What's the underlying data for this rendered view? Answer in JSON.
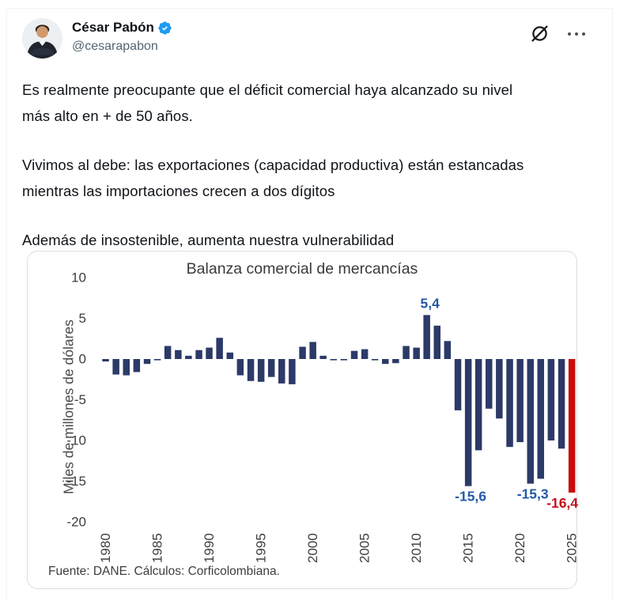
{
  "header": {
    "author_name": "César Pabón",
    "handle": "@cesarapabon",
    "verified": true,
    "icons": {
      "grok": "grok-slashed-circle",
      "more": "ellipsis"
    }
  },
  "tweet": {
    "paragraphs": [
      "Es realmente preocupante que el déficit comercial haya alcanzado su nivel\nmás alto en + de 50 años.",
      "Vivimos al debe: las exportaciones (capacidad productiva) están estancadas\nmientras las importaciones crecen a dos dígitos",
      "Además de insostenible, aumenta nuestra vulnerabilidad"
    ]
  },
  "chart_data": {
    "type": "bar",
    "title": "Balanza comercial de mercancías",
    "ylabel": "Miles de millones de dólares",
    "source": "Fuente: DANE. Cálculos: Corficolombiana.",
    "ylim": [
      -20,
      10
    ],
    "yticks": [
      10,
      5,
      0,
      -5,
      -10,
      -15,
      -20
    ],
    "xticks": [
      1980,
      1985,
      1990,
      1995,
      2000,
      2005,
      2010,
      2015,
      2020,
      2025
    ],
    "grid": false,
    "legend": "none",
    "years": [
      1980,
      1981,
      1982,
      1983,
      1984,
      1985,
      1986,
      1987,
      1988,
      1989,
      1990,
      1991,
      1992,
      1993,
      1994,
      1995,
      1996,
      1997,
      1998,
      1999,
      2000,
      2001,
      2002,
      2003,
      2004,
      2005,
      2006,
      2007,
      2008,
      2009,
      2010,
      2011,
      2012,
      2013,
      2014,
      2015,
      2016,
      2017,
      2018,
      2019,
      2020,
      2021,
      2022,
      2023,
      2024,
      2025
    ],
    "values": [
      -0.3,
      -1.9,
      -2.0,
      -1.6,
      -0.6,
      -0.1,
      1.6,
      1.1,
      0.4,
      1.1,
      1.4,
      2.6,
      0.8,
      -2.0,
      -2.7,
      -2.8,
      -2.2,
      -3.0,
      -3.1,
      1.5,
      2.1,
      0.4,
      -0.1,
      -0.1,
      1.0,
      1.2,
      -0.1,
      -0.6,
      -0.5,
      1.6,
      1.4,
      5.4,
      4.1,
      2.2,
      -6.3,
      -15.6,
      -11.2,
      -6.1,
      -7.3,
      -10.8,
      -10.2,
      -15.3,
      -14.7,
      -10.0,
      -11.0,
      -16.4
    ],
    "bar_color": "#2c3a68",
    "highlight_year": 2025,
    "highlight_color": "#c90d0d",
    "annotations": [
      {
        "year": 2011,
        "text": "5,4",
        "color": "#2458a8",
        "dx": 4
      },
      {
        "year": 2015,
        "text": "-15,6",
        "color": "#2458a8",
        "dx": 3
      },
      {
        "year": 2021,
        "text": "-15,3",
        "color": "#2458a8",
        "dx": 3
      },
      {
        "year": 2025,
        "text": "-16,4",
        "color": "#c3111c",
        "dx": -12
      }
    ]
  }
}
